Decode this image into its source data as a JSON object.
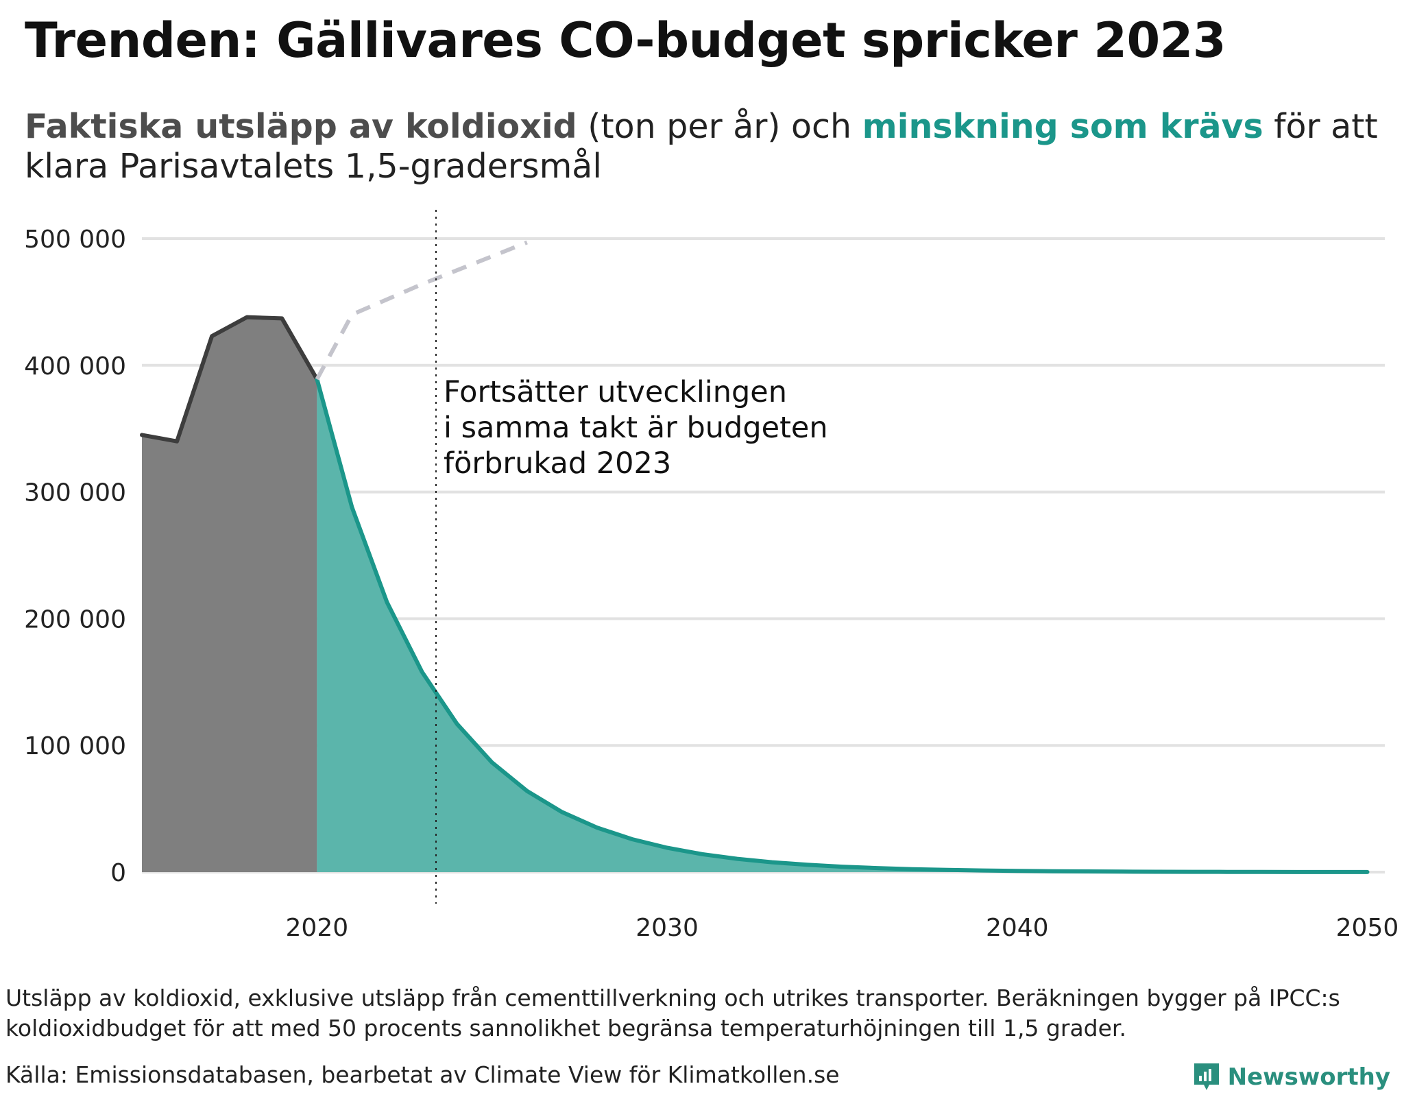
{
  "title": "Trenden: Gällivares CO-budget spricker 2023",
  "subtitle": {
    "actual_label": "Faktiska utsläpp av koldioxid",
    "part2": " (ton per år) och ",
    "required_label": "minskning som krävs",
    "part3": " för att klara Parisavtalets 1,5-gradersmål"
  },
  "annotation": {
    "lines": [
      "Fortsätter utvecklingen",
      "i samma takt är budgeten",
      "förbrukad 2023"
    ]
  },
  "footer": {
    "note": "Utsläpp av koldioxid, exklusive utsläpp från cementtillverkning och utrikes transporter. Beräkningen bygger på IPCC:s koldioxidbudget för att med 50 procents sannolikhet begränsa temperaturhöjningen till 1,5 grader.",
    "source": "Källa: Emissionsdatabasen, bearbetat av Climate View för Klimatkollen.se",
    "brand": "Newsworthy"
  },
  "colors": {
    "actual_fill": "#7f7f7f",
    "actual_line": "#3d3d3d",
    "required_fill": "#5bb5ab",
    "required_line": "#1b968a",
    "trend_line": "#c4c4cc",
    "gridline": "#e2e2e2",
    "brand": "#2a8f7e"
  },
  "chart_data": {
    "type": "area",
    "xlim": [
      2015,
      2050.5
    ],
    "ylim": [
      0,
      500000
    ],
    "x_ticks": [
      2020,
      2030,
      2040,
      2050
    ],
    "x_tick_labels": [
      "2020",
      "2030",
      "2040",
      "2050"
    ],
    "y_ticks": [
      0,
      100000,
      200000,
      300000,
      400000,
      500000
    ],
    "y_tick_labels": [
      "0",
      "100 000",
      "200 000",
      "300 000",
      "400 000",
      "500 000"
    ],
    "grid": "horizontal",
    "budget_exhausted_year": 2023.4,
    "series": [
      {
        "role": "actual",
        "style": "area-solid",
        "x": [
          2015,
          2016,
          2017,
          2018,
          2019,
          2020
        ],
        "y": [
          345000,
          340000,
          423000,
          438000,
          437000,
          389000
        ]
      },
      {
        "role": "required",
        "style": "area-solid",
        "x": [
          2020,
          2021,
          2022,
          2023,
          2024,
          2025,
          2026,
          2027,
          2028,
          2029,
          2030,
          2031,
          2032,
          2033,
          2034,
          2035,
          2036,
          2037,
          2038,
          2039,
          2040,
          2041,
          2042,
          2043,
          2044,
          2045,
          2046,
          2047,
          2048,
          2049,
          2050
        ],
        "y": [
          389000,
          288000,
          213000,
          158000,
          117000,
          86500,
          64000,
          47400,
          35100,
          26000,
          19200,
          14200,
          10500,
          7800,
          5800,
          4300,
          3200,
          2350,
          1750,
          1300,
          950,
          700,
          520,
          380,
          280,
          210,
          150,
          110,
          80,
          60,
          45
        ]
      },
      {
        "role": "trend",
        "style": "dashed",
        "x": [
          2020,
          2021,
          2022,
          2023,
          2024,
          2025,
          2026
        ],
        "y": [
          389000,
          440000,
          452000,
          464000,
          475000,
          486000,
          497000
        ]
      }
    ]
  }
}
